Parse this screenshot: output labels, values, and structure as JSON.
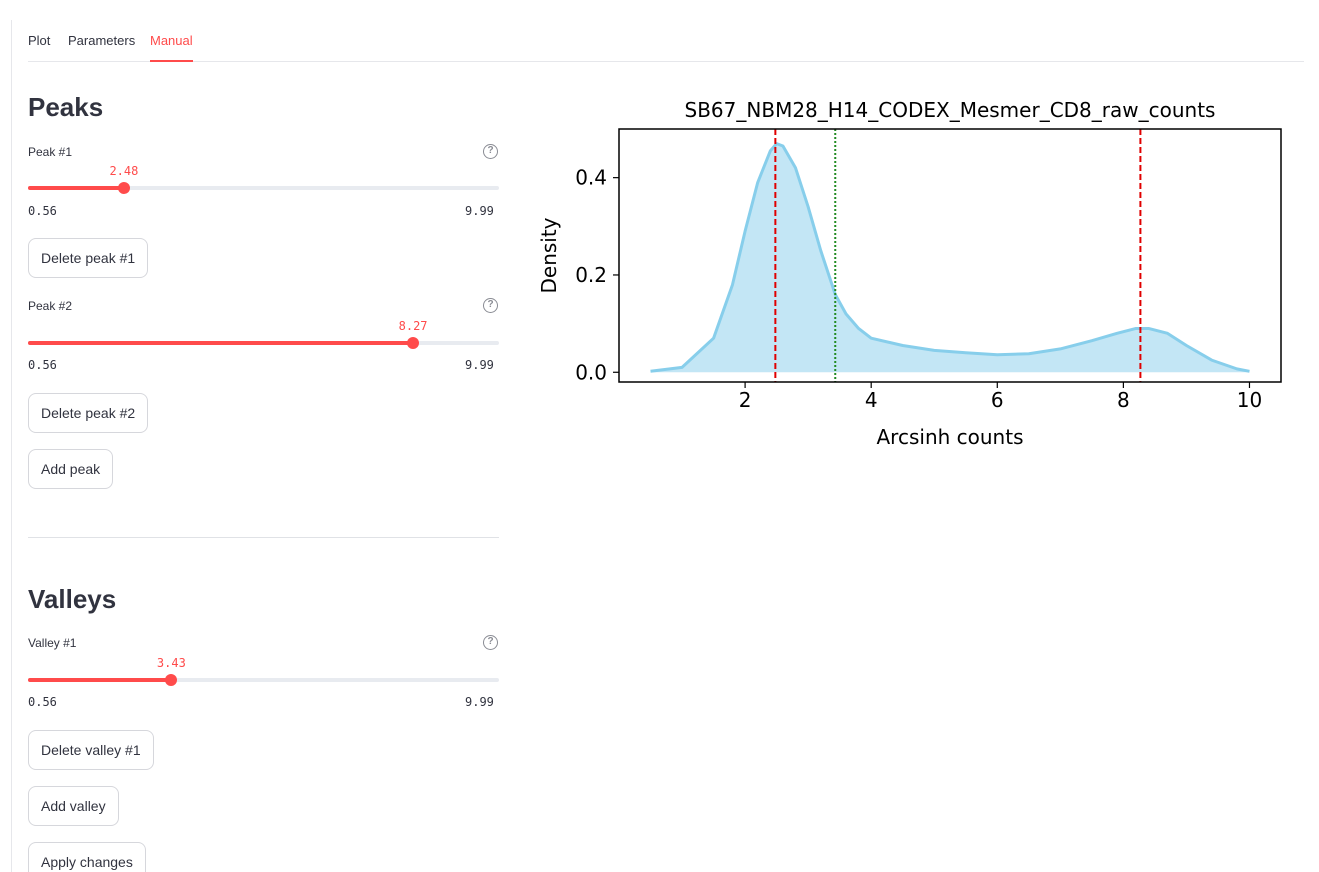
{
  "tabs": [
    {
      "label": "Plot",
      "active": false
    },
    {
      "label": "Parameters",
      "active": false
    },
    {
      "label": "Manual",
      "active": true
    }
  ],
  "peaks": {
    "heading": "Peaks",
    "sliders": [
      {
        "label": "Peak #1",
        "value": 2.48,
        "value_text": "2.48",
        "min": 0.56,
        "max": 9.99,
        "min_text": "0.56",
        "max_text": "9.99"
      },
      {
        "label": "Peak #2",
        "value": 8.27,
        "value_text": "8.27",
        "min": 0.56,
        "max": 9.99,
        "min_text": "0.56",
        "max_text": "9.99"
      }
    ],
    "delete_buttons": [
      "Delete peak #1",
      "Delete peak #2"
    ],
    "add_button": "Add peak"
  },
  "valleys": {
    "heading": "Valleys",
    "sliders": [
      {
        "label": "Valley #1",
        "value": 3.43,
        "value_text": "3.43",
        "min": 0.56,
        "max": 9.99,
        "min_text": "0.56",
        "max_text": "9.99"
      }
    ],
    "delete_buttons": [
      "Delete valley #1"
    ],
    "add_button": "Add valley"
  },
  "apply_button": "Apply changes",
  "help_icon": "?",
  "colors": {
    "accent": "#ff4b4b",
    "density_line": "#87ceeb",
    "peak_line": "#e00000",
    "valley_line": "#228b22"
  },
  "chart_data": {
    "type": "area",
    "title": "SB67_NBM28_H14_CODEX_Mesmer_CD8_raw_counts",
    "xlabel": "Arcsinh counts",
    "ylabel": "Density",
    "xlim": [
      0.0,
      10.5
    ],
    "ylim": [
      -0.02,
      0.5
    ],
    "xticks": [
      2,
      4,
      6,
      8,
      10
    ],
    "xtick_labels": [
      "2",
      "4",
      "6",
      "8",
      "10"
    ],
    "yticks": [
      0.0,
      0.2,
      0.4
    ],
    "ytick_labels": [
      "0.0",
      "0.2",
      "0.4"
    ],
    "series": [
      {
        "x": [
          0.5,
          1.0,
          1.5,
          1.8,
          2.0,
          2.2,
          2.4,
          2.5,
          2.6,
          2.8,
          3.0,
          3.2,
          3.43,
          3.6,
          3.8,
          4.0,
          4.5,
          5.0,
          5.5,
          6.0,
          6.5,
          7.0,
          7.5,
          7.9,
          8.2,
          8.4,
          8.7,
          9.0,
          9.4,
          9.8,
          10.0
        ],
        "y": [
          0.002,
          0.01,
          0.07,
          0.18,
          0.29,
          0.39,
          0.455,
          0.47,
          0.465,
          0.42,
          0.34,
          0.25,
          0.16,
          0.12,
          0.09,
          0.07,
          0.055,
          0.045,
          0.04,
          0.036,
          0.038,
          0.048,
          0.065,
          0.08,
          0.09,
          0.09,
          0.08,
          0.055,
          0.025,
          0.007,
          0.002
        ]
      }
    ],
    "vlines": [
      {
        "x": 2.48,
        "style": "dashed",
        "kind": "peak"
      },
      {
        "x": 8.27,
        "style": "dashed",
        "kind": "peak"
      },
      {
        "x": 3.43,
        "style": "dotted",
        "kind": "valley"
      }
    ],
    "grid": false,
    "legend": "none"
  }
}
